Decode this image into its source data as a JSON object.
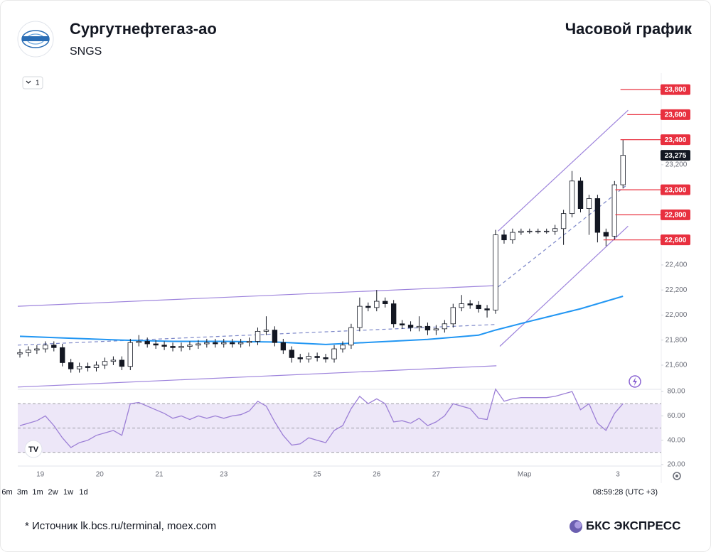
{
  "header": {
    "title": "Сургутнефтегаз-ао",
    "ticker": "SNGS",
    "chart_label": "Часовой график"
  },
  "toolbar": {
    "indicator_count": "1",
    "timeframes": [
      "6m",
      "3m",
      "1m",
      "2w",
      "1w",
      "1d"
    ],
    "clock": "08:59:28 (UTC +3)"
  },
  "footer": {
    "source": "*  Источник lk.bcs.ru/terminal, moex.com",
    "brand": "БКС ЭКСПРЕСС"
  },
  "chart_data": [
    {
      "type": "candlestick",
      "xlim": [
        -0.25,
        75.5
      ],
      "xticks": [
        {
          "value": 2.4,
          "label": "19"
        },
        {
          "value": 9.4,
          "label": "20"
        },
        {
          "value": 16.4,
          "label": "21"
        },
        {
          "value": 24,
          "label": "23"
        },
        {
          "value": 35,
          "label": "25"
        },
        {
          "value": 42,
          "label": "26"
        },
        {
          "value": 49,
          "label": "27"
        },
        {
          "value": 59.4,
          "label": "Мар"
        },
        {
          "value": 70.4,
          "label": "3"
        }
      ],
      "ylim": [
        21407,
        23931
      ],
      "yticks": [
        {
          "value": 21600,
          "label": "21,600"
        },
        {
          "value": 21800,
          "label": "21,800"
        },
        {
          "value": 22000,
          "label": "22,000"
        },
        {
          "value": 22200,
          "label": "22,200"
        },
        {
          "value": 22400,
          "label": "22,400"
        },
        {
          "value": 23200,
          "label": "23,200"
        }
      ],
      "up_color": "#ffffff",
      "down_color": "#131722",
      "edge_color": "#131722",
      "open": [
        21690,
        21700,
        21720,
        21730,
        21760,
        21740,
        21620,
        21570,
        21590,
        21580,
        21600,
        21630,
        21640,
        21590,
        21780,
        21790,
        21770,
        21760,
        21750,
        21740,
        21750,
        21760,
        21770,
        21780,
        21770,
        21780,
        21770,
        21780,
        21790,
        21870,
        21880,
        21780,
        21720,
        21660,
        21650,
        21670,
        21660,
        21650,
        21730,
        21760,
        21900,
        22070,
        22060,
        22110,
        22090,
        21930,
        21920,
        21900,
        21910,
        21880,
        21890,
        21930,
        22060,
        22090,
        22080,
        22050,
        22040,
        22640,
        22600,
        22660,
        22670,
        22670,
        22670,
        22670,
        22690,
        22810,
        23070,
        22850,
        22930,
        22660,
        22630,
        23040
      ],
      "high": [
        21730,
        21750,
        21760,
        21790,
        21790,
        21770,
        21650,
        21620,
        21620,
        21630,
        21660,
        21670,
        21670,
        21810,
        21840,
        21820,
        21800,
        21790,
        21780,
        21780,
        21790,
        21800,
        21810,
        21810,
        21810,
        21810,
        21810,
        21820,
        21900,
        21990,
        21910,
        21810,
        21750,
        21690,
        21700,
        21700,
        21690,
        21760,
        21790,
        21930,
        22140,
        22100,
        22200,
        22140,
        22120,
        21960,
        21950,
        21990,
        21940,
        21920,
        21960,
        22090,
        22160,
        22120,
        22110,
        22080,
        22680,
        22680,
        22690,
        22690,
        22690,
        22690,
        22690,
        22720,
        22840,
        23150,
        23100,
        22960,
        22960,
        22690,
        23070,
        23400
      ],
      "low": [
        21660,
        21670,
        21690,
        21700,
        21710,
        21590,
        21540,
        21540,
        21550,
        21550,
        21570,
        21600,
        21560,
        21560,
        21750,
        21740,
        21730,
        21720,
        21710,
        21710,
        21720,
        21730,
        21740,
        21740,
        21740,
        21740,
        21740,
        21750,
        21760,
        21840,
        21750,
        21690,
        21620,
        21620,
        21620,
        21630,
        21620,
        21620,
        21700,
        21730,
        21870,
        22030,
        22030,
        22060,
        21900,
        21890,
        21870,
        21870,
        21840,
        21840,
        21860,
        21900,
        22030,
        22050,
        22020,
        21980,
        22010,
        22570,
        22570,
        22640,
        22650,
        22650,
        22650,
        22640,
        22560,
        22780,
        22820,
        22640,
        22580,
        22550,
        22600,
        23010
      ],
      "close": [
        21700,
        21720,
        21730,
        21760,
        21740,
        21620,
        21570,
        21590,
        21580,
        21600,
        21630,
        21640,
        21590,
        21780,
        21790,
        21770,
        21760,
        21750,
        21740,
        21750,
        21760,
        21770,
        21780,
        21770,
        21780,
        21770,
        21780,
        21790,
        21870,
        21880,
        21780,
        21720,
        21660,
        21650,
        21670,
        21660,
        21650,
        21730,
        21760,
        21900,
        22070,
        22060,
        22110,
        22090,
        21930,
        21920,
        21900,
        21910,
        21880,
        21890,
        21930,
        22060,
        22090,
        22080,
        22050,
        22040,
        22640,
        22600,
        22660,
        22670,
        22670,
        22670,
        22670,
        22690,
        22810,
        23070,
        22850,
        22930,
        22660,
        22630,
        23040,
        23275
      ],
      "moving_average": {
        "color": "#2196f3",
        "x": [
          0,
          6,
          12,
          18,
          24,
          30,
          36,
          42,
          48,
          54,
          56,
          60,
          66,
          71
        ],
        "values": [
          21830,
          21815,
          21800,
          21790,
          21790,
          21785,
          21765,
          21785,
          21805,
          21840,
          21880,
          21950,
          22050,
          22150
        ]
      },
      "trend_lines": [
        {
          "color": "#9d83dc",
          "dashed": false,
          "x": [
            -0.25,
            56.1
          ],
          "values": [
            22070,
            22235
          ]
        },
        {
          "color": "#9d83dc",
          "dashed": false,
          "x": [
            -0.25,
            56.1
          ],
          "values": [
            21425,
            21595
          ]
        },
        {
          "color": "#7b86c8",
          "dashed": true,
          "x": [
            -0.25,
            56.1
          ],
          "values": [
            21760,
            21925
          ]
        },
        {
          "color": "#9d83dc",
          "dashed": false,
          "x": [
            56.3,
            71.6
          ],
          "values": [
            22670,
            23635
          ]
        },
        {
          "color": "#9d83dc",
          "dashed": false,
          "x": [
            56.5,
            71.6
          ],
          "values": [
            21750,
            22710
          ]
        },
        {
          "color": "#7b86c8",
          "dashed": true,
          "x": [
            56.3,
            71.3
          ],
          "values": [
            22225,
            23030
          ]
        }
      ],
      "levels": {
        "color": "#e8303f",
        "x_start": [
          70.7,
          71.5,
          70.7,
          70.1,
          70.1,
          68.7
        ],
        "values": [
          {
            "value": 23800,
            "label": "23,800"
          },
          {
            "value": 23600,
            "label": "23,600"
          },
          {
            "value": 23400,
            "label": "23,400"
          },
          {
            "value": 23000,
            "label": "23,000"
          },
          {
            "value": 22800,
            "label": "22,800"
          },
          {
            "value": 22600,
            "label": "22,600"
          }
        ]
      },
      "last_price": {
        "value": 23275,
        "label": "23,275"
      }
    },
    {
      "type": "line",
      "ylim": [
        18.8,
        81.8
      ],
      "yticks": [
        {
          "value": 80,
          "label": "80.00"
        },
        {
          "value": 60,
          "label": "60.00"
        },
        {
          "value": 40,
          "label": "40.00"
        },
        {
          "value": 20,
          "label": "20.00"
        }
      ],
      "band": [
        30,
        70
      ],
      "midline": 50,
      "band_color": "#ede7f8",
      "series": [
        {
          "color": "#9c7fd6",
          "x": [
            0,
            1,
            2,
            3,
            4,
            5,
            6,
            7,
            8,
            9,
            10,
            11,
            12,
            13,
            14,
            15,
            16,
            17,
            18,
            19,
            20,
            21,
            22,
            23,
            24,
            25,
            26,
            27,
            28,
            29,
            30,
            31,
            32,
            33,
            34,
            35,
            36,
            37,
            38,
            39,
            40,
            41,
            42,
            43,
            44,
            45,
            46,
            47,
            48,
            49,
            50,
            51,
            52,
            53,
            54,
            55,
            56,
            57,
            58,
            59,
            60,
            61,
            62,
            63,
            64,
            65,
            66,
            67,
            68,
            69,
            70,
            71
          ],
          "values": [
            52,
            54,
            56,
            60,
            52,
            42,
            34,
            38,
            40,
            44,
            46,
            48,
            44,
            70,
            71,
            68,
            65,
            62,
            58,
            60,
            57,
            60,
            58,
            60,
            58,
            60,
            61,
            64,
            72,
            68,
            55,
            44,
            36,
            37,
            42,
            40,
            38,
            48,
            52,
            66,
            76,
            70,
            74,
            70,
            55,
            56,
            54,
            58,
            52,
            55,
            60,
            70,
            68,
            66,
            58,
            57,
            82,
            72,
            74,
            75,
            75,
            75,
            75,
            76,
            78,
            80,
            65,
            70,
            54,
            48,
            62,
            70
          ]
        }
      ]
    }
  ]
}
